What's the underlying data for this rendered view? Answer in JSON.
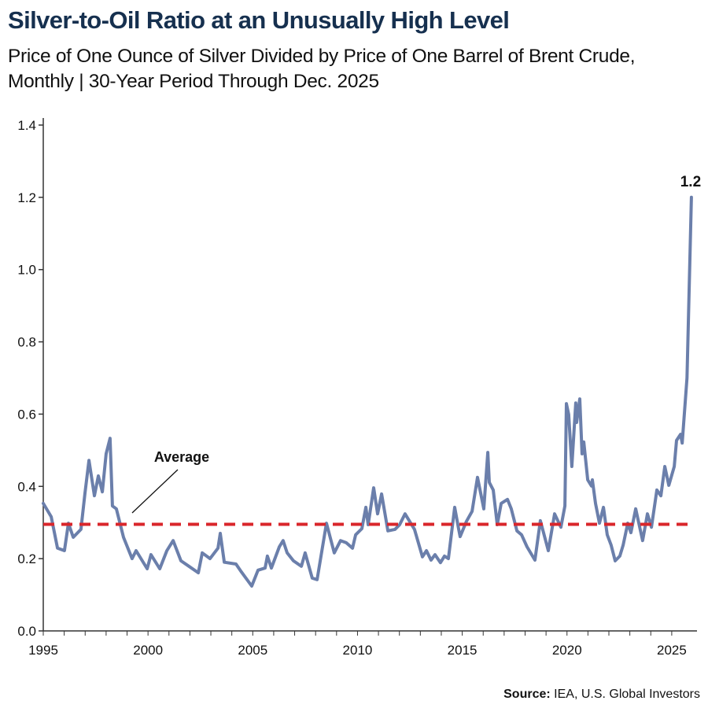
{
  "chart_data": {
    "type": "line",
    "title": "Silver-to-Oil Ratio at an Unusually High Level",
    "subtitle": "Price of One Ounce of Silver Divided by Price of One Barrel of Brent Crude, Monthly | 30-Year Period Through Dec. 2025",
    "xlabel": "",
    "ylabel": "",
    "xlim": [
      1995,
      2025.95
    ],
    "ylim": [
      0,
      1.4
    ],
    "x_ticks": [
      "1995",
      "2000",
      "2005",
      "2010",
      "2015",
      "2020",
      "2025"
    ],
    "y_ticks": [
      "0.0",
      "0.2",
      "0.4",
      "0.6",
      "0.8",
      "1.0",
      "1.2",
      "1.4"
    ],
    "grid": false,
    "series": [
      {
        "color": "#6b7fab",
        "x": [
          1995.0,
          1995.38,
          1995.68,
          1996.01,
          1996.2,
          1996.43,
          1996.8,
          1996.99,
          1997.18,
          1997.44,
          1997.63,
          1997.82,
          1998.0,
          1998.19,
          1998.3,
          1998.49,
          1998.83,
          1999.24,
          1999.43,
          1999.96,
          2000.14,
          2000.56,
          2000.9,
          2001.2,
          2001.57,
          2001.95,
          2002.4,
          2002.59,
          2002.96,
          2003.34,
          2003.45,
          2003.64,
          2004.2,
          2004.46,
          2004.95,
          2005.25,
          2005.59,
          2005.7,
          2005.89,
          2006.27,
          2006.45,
          2006.64,
          2006.94,
          2007.32,
          2007.5,
          2007.84,
          2008.07,
          2008.52,
          2008.89,
          2009.19,
          2009.46,
          2009.76,
          2009.91,
          2010.21,
          2010.4,
          2010.51,
          2010.77,
          2010.96,
          2011.15,
          2011.45,
          2011.79,
          2012.01,
          2012.27,
          2012.72,
          2013.1,
          2013.29,
          2013.51,
          2013.7,
          2013.96,
          2014.15,
          2014.34,
          2014.64,
          2014.83,
          2014.9,
          2015.2,
          2015.47,
          2015.73,
          2016.03,
          2016.22,
          2016.29,
          2016.48,
          2016.67,
          2016.86,
          2017.16,
          2017.34,
          2017.61,
          2017.83,
          2018.09,
          2018.47,
          2018.73,
          2019.11,
          2019.41,
          2019.71,
          2019.9,
          2019.97,
          2020.08,
          2020.23,
          2020.42,
          2020.46,
          2020.61,
          2020.72,
          2020.8,
          2020.99,
          2021.17,
          2021.21,
          2021.36,
          2021.55,
          2021.74,
          2021.92,
          2022.11,
          2022.3,
          2022.52,
          2022.68,
          2022.9,
          2023.05,
          2023.28,
          2023.61,
          2023.84,
          2024.03,
          2024.29,
          2024.48,
          2024.67,
          2024.86,
          2025.12,
          2025.23,
          2025.42,
          2025.5,
          2025.73,
          2025.94
        ],
        "y": [
          0.353,
          0.316,
          0.229,
          0.222,
          0.298,
          0.259,
          0.281,
          0.381,
          0.472,
          0.374,
          0.429,
          0.385,
          0.49,
          0.533,
          0.346,
          0.338,
          0.259,
          0.2,
          0.222,
          0.172,
          0.211,
          0.172,
          0.222,
          0.25,
          0.194,
          0.179,
          0.161,
          0.216,
          0.2,
          0.229,
          0.27,
          0.19,
          0.185,
          0.163,
          0.124,
          0.168,
          0.174,
          0.207,
          0.174,
          0.233,
          0.25,
          0.216,
          0.194,
          0.179,
          0.216,
          0.146,
          0.142,
          0.298,
          0.216,
          0.25,
          0.244,
          0.229,
          0.266,
          0.283,
          0.342,
          0.294,
          0.396,
          0.324,
          0.379,
          0.277,
          0.281,
          0.294,
          0.324,
          0.281,
          0.205,
          0.222,
          0.196,
          0.211,
          0.189,
          0.207,
          0.2,
          0.342,
          0.281,
          0.261,
          0.303,
          0.331,
          0.425,
          0.338,
          0.494,
          0.411,
          0.39,
          0.294,
          0.353,
          0.364,
          0.338,
          0.277,
          0.266,
          0.233,
          0.196,
          0.305,
          0.222,
          0.324,
          0.287,
          0.346,
          0.629,
          0.599,
          0.455,
          0.631,
          0.577,
          0.642,
          0.49,
          0.523,
          0.418,
          0.401,
          0.418,
          0.353,
          0.298,
          0.342,
          0.266,
          0.237,
          0.194,
          0.207,
          0.237,
          0.298,
          0.272,
          0.338,
          0.25,
          0.324,
          0.287,
          0.39,
          0.374,
          0.455,
          0.403,
          0.455,
          0.527,
          0.544,
          0.52,
          0.7,
          1.2
        ]
      }
    ],
    "average": {
      "value": 0.295,
      "label": "Average",
      "color": "#d9262b"
    },
    "annotations": [
      {
        "text": "1.2",
        "x": 2025.94,
        "y": 1.2
      }
    ],
    "source_label": "Source:",
    "source_text": " IEA, U.S. Global Investors"
  }
}
